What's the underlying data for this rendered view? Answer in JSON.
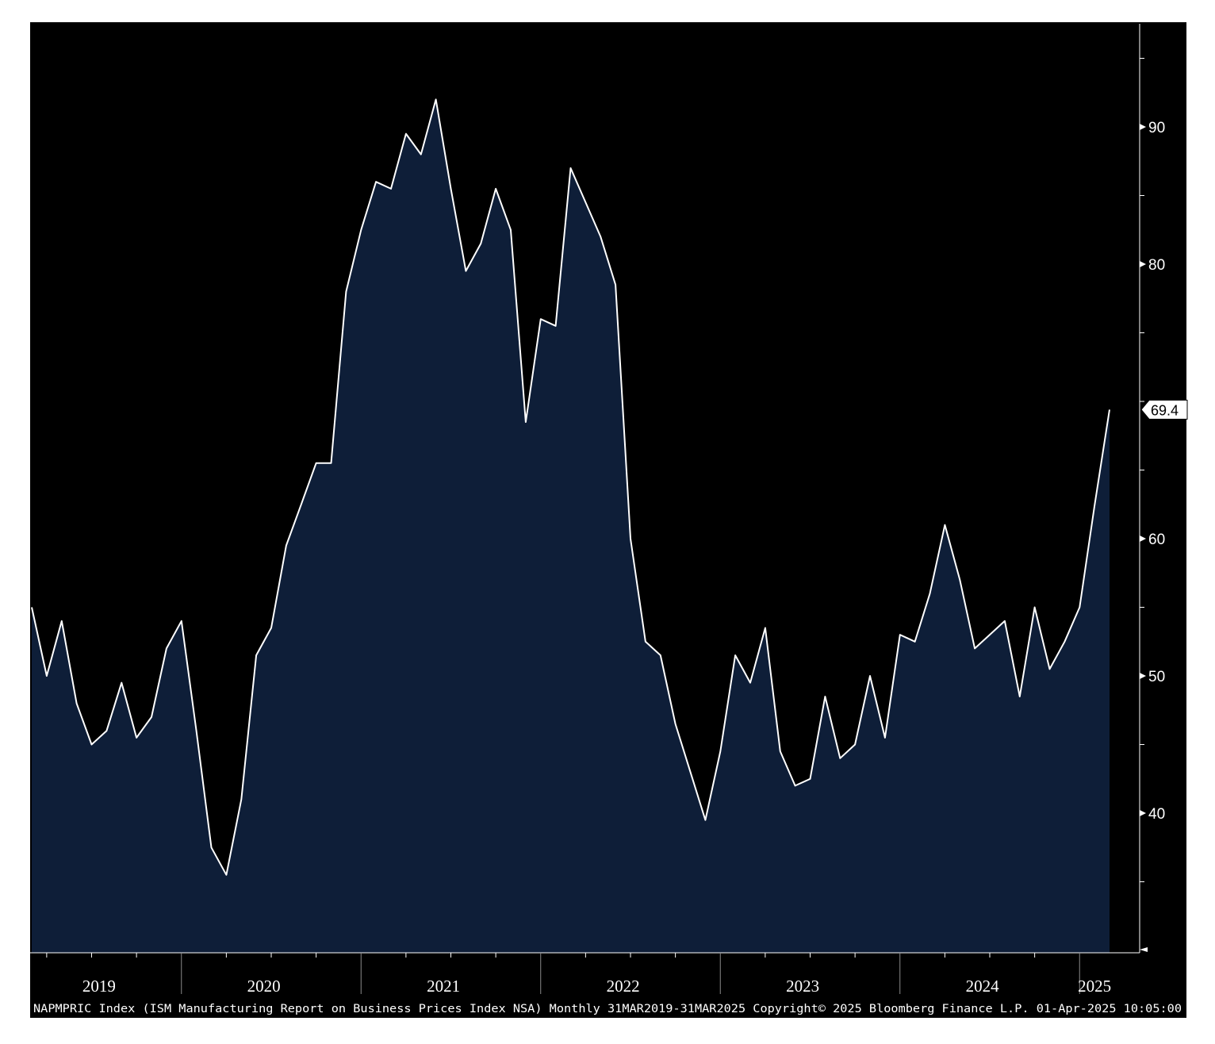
{
  "chart_data": {
    "type": "area",
    "x_start": "2019-03",
    "frequency": "monthly",
    "values": [
      55,
      50,
      54,
      48,
      45,
      46,
      49.5,
      45.5,
      47,
      52,
      54,
      46,
      37.5,
      35.5,
      41,
      51.5,
      53.5,
      59.5,
      62.5,
      65.5,
      65.5,
      78,
      82.5,
      86,
      85.5,
      89.5,
      88,
      92,
      85.5,
      79.5,
      81.5,
      85.5,
      82.5,
      68.5,
      76,
      75.5,
      87,
      84.5,
      82,
      78.5,
      60,
      52.5,
      51.5,
      46.5,
      43,
      39.5,
      44.5,
      51.5,
      49.5,
      53.5,
      44.5,
      42,
      42.5,
      48.5,
      44,
      45,
      50,
      45.5,
      53,
      52.5,
      56,
      61,
      57,
      52,
      53,
      54,
      48.5,
      55,
      50.5,
      52.5,
      55,
      62.4,
      69.4
    ],
    "ylim": [
      30,
      95
    ],
    "yticks": [
      "90",
      "80",
      "60",
      "50",
      "40"
    ],
    "x_tick_labels": [
      "2019",
      "2020",
      "2021",
      "2022",
      "2023",
      "2024",
      "2025"
    ],
    "last_value_label": "69.4",
    "grid": false
  },
  "footer": "NAPMPRIC Index (ISM Manufacturing Report on Business Prices Index NSA)  Monthly 31MAR2019-31MAR2025 Copyright© 2025 Bloomberg Finance L.P. 01-Apr-2025 10:05:00",
  "colors": {
    "background": "#000000",
    "area_fill": "#0e1e38",
    "line": "#ffffff",
    "axis": "#ffffff"
  }
}
